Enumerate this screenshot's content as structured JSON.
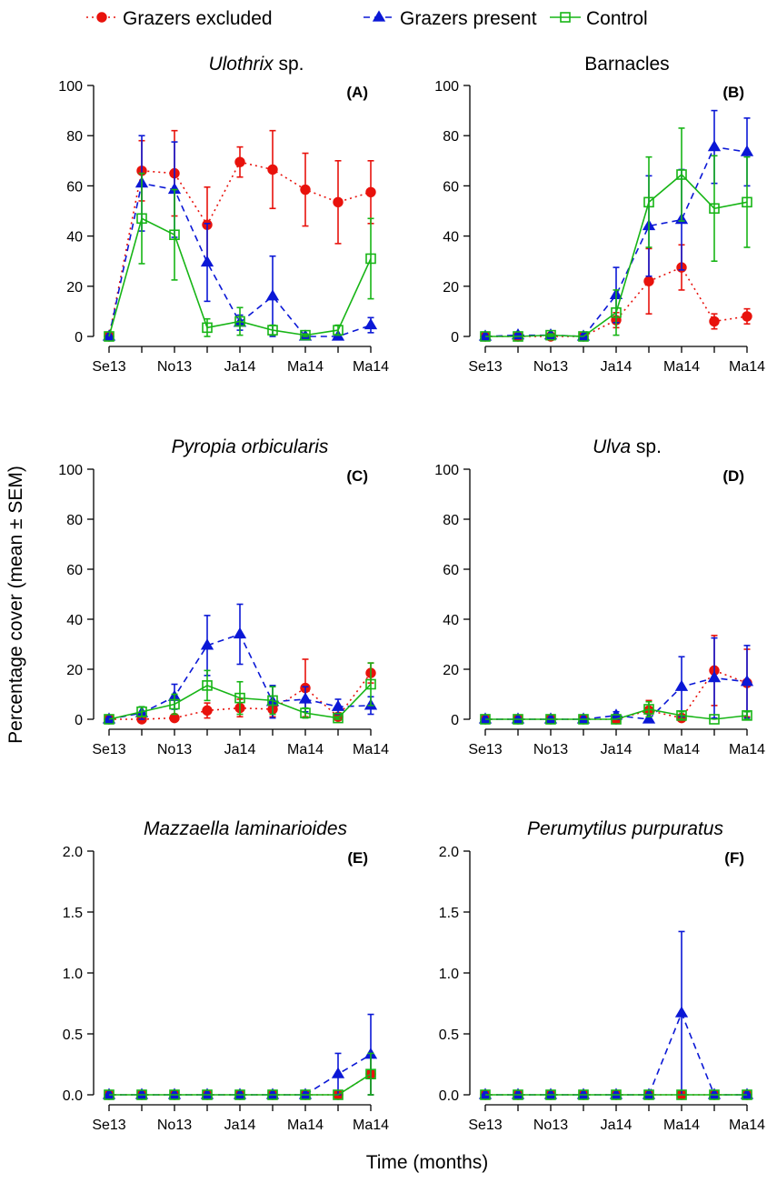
{
  "legend": [
    {
      "label": "Grazers excluded",
      "color": "#e8120c",
      "marker": "circle",
      "dash": "dotted"
    },
    {
      "label": "Grazers present",
      "color": "#0b18d6",
      "marker": "triangle",
      "dash": "dashed"
    },
    {
      "label": "Control",
      "color": "#17b516",
      "marker": "open-square",
      "dash": "solid"
    }
  ],
  "xlabel": "Time (months)",
  "ylabel": "Percentage cover (mean ± SEM)",
  "colors": {
    "excluded": "#e8120c",
    "present": "#0b18d6",
    "control": "#17b516"
  },
  "chart_data": [
    {
      "type": "line",
      "panel": "(A)",
      "title": "sp.",
      "title_italic": "Ulothrix",
      "xticks": [
        "Se13",
        "No13",
        "Ja14",
        "Ma14",
        "Ma14"
      ],
      "xtick_positions": [
        0,
        2,
        4,
        6,
        8
      ],
      "x": [
        0,
        1,
        2,
        3,
        4,
        5,
        6,
        7,
        8
      ],
      "ylim": [
        0,
        100
      ],
      "yticks": [
        "0",
        "20",
        "40",
        "60",
        "80",
        "100"
      ],
      "ytick_values": [
        0,
        20,
        40,
        60,
        80,
        100
      ],
      "series": [
        {
          "name": "Grazers excluded",
          "values": [
            0,
            66,
            65,
            44.5,
            69.5,
            66.5,
            58.5,
            53.5,
            57.5
          ],
          "err": [
            0,
            12,
            17,
            15,
            6,
            15.5,
            14.5,
            16.5,
            12.5
          ]
        },
        {
          "name": "Grazers present",
          "values": [
            0,
            61,
            58.5,
            29.5,
            5.5,
            16,
            0,
            0,
            4.5
          ],
          "err": [
            0,
            19,
            19,
            15.5,
            3,
            16,
            0,
            0,
            3
          ]
        },
        {
          "name": "Control",
          "values": [
            0,
            47,
            40.5,
            3.5,
            6,
            2.5,
            0.5,
            2.5,
            31
          ],
          "err": [
            0,
            18,
            18,
            3.5,
            5.5,
            2,
            0.5,
            2,
            16
          ]
        }
      ]
    },
    {
      "type": "line",
      "panel": "(B)",
      "title": "Barnacles",
      "title_italic": "",
      "xticks": [
        "Se13",
        "No13",
        "Ja14",
        "Ma14",
        "Ma14"
      ],
      "xtick_positions": [
        0,
        2,
        4,
        6,
        8
      ],
      "x": [
        0,
        1,
        2,
        3,
        4,
        5,
        6,
        7,
        8
      ],
      "ylim": [
        0,
        100
      ],
      "yticks": [
        "0",
        "20",
        "40",
        "60",
        "80",
        "100"
      ],
      "ytick_values": [
        0,
        20,
        40,
        60,
        80,
        100
      ],
      "series": [
        {
          "name": "Grazers excluded",
          "values": [
            0,
            0,
            0,
            0,
            6.5,
            22,
            27.5,
            6,
            8
          ],
          "err": [
            0,
            0,
            0,
            0,
            3,
            13,
            9,
            3,
            3
          ]
        },
        {
          "name": "Grazers present",
          "values": [
            0,
            0.5,
            0.5,
            0,
            16.5,
            44,
            46.5,
            75.5,
            73.5
          ],
          "err": [
            0,
            0.5,
            0.5,
            0,
            11,
            20,
            20,
            14.5,
            13.5
          ]
        },
        {
          "name": "Control",
          "values": [
            0,
            0,
            0.5,
            0,
            9.5,
            53.5,
            64.5,
            51,
            53.5
          ],
          "err": [
            0,
            0,
            0.5,
            0,
            9,
            18,
            18.5,
            21,
            18
          ]
        }
      ]
    },
    {
      "type": "line",
      "panel": "(C)",
      "title": "",
      "title_italic": "Pyropia orbicularis",
      "xticks": [
        "Se13",
        "No13",
        "Ja14",
        "Ma14",
        "Ma14"
      ],
      "xtick_positions": [
        0,
        2,
        4,
        6,
        8
      ],
      "x": [
        0,
        1,
        2,
        3,
        4,
        5,
        6,
        7,
        8
      ],
      "ylim": [
        0,
        100
      ],
      "yticks": [
        "0",
        "20",
        "40",
        "60",
        "80",
        "100"
      ],
      "ytick_values": [
        0,
        20,
        40,
        60,
        80,
        100
      ],
      "series": [
        {
          "name": "Grazers excluded",
          "values": [
            0,
            0,
            0.5,
            3.5,
            4.5,
            4,
            12.5,
            1,
            18.5
          ],
          "err": [
            0,
            0,
            0.5,
            3,
            3.5,
            3,
            11.5,
            1,
            4
          ]
        },
        {
          "name": "Grazers present",
          "values": [
            0,
            2.5,
            9,
            29.5,
            34,
            7,
            8,
            5,
            5.5
          ],
          "err": [
            0,
            2.5,
            5,
            12,
            12,
            6.5,
            5,
            3,
            3.5
          ]
        },
        {
          "name": "Control",
          "values": [
            0,
            3,
            6,
            13.5,
            8.5,
            7.5,
            2.5,
            0.5,
            14
          ],
          "err": [
            0,
            2,
            4,
            6,
            6.5,
            5.5,
            2,
            0.5,
            8.5
          ]
        }
      ]
    },
    {
      "type": "line",
      "panel": "(D)",
      "title": "sp.",
      "title_italic": "Ulva",
      "xticks": [
        "Se13",
        "No13",
        "Ja14",
        "Ma14",
        "Ma14"
      ],
      "xtick_positions": [
        0,
        2,
        4,
        6,
        8
      ],
      "x": [
        0,
        1,
        2,
        3,
        4,
        5,
        6,
        7,
        8
      ],
      "ylim": [
        0,
        100
      ],
      "yticks": [
        "0",
        "20",
        "40",
        "60",
        "80",
        "100"
      ],
      "ytick_values": [
        0,
        20,
        40,
        60,
        80,
        100
      ],
      "series": [
        {
          "name": "Grazers excluded",
          "values": [
            0,
            0,
            0,
            0,
            0,
            3.5,
            0.5,
            19.5,
            14.5
          ],
          "err": [
            0,
            0,
            0,
            0,
            0,
            4,
            0.5,
            14,
            13.5
          ]
        },
        {
          "name": "Grazers present",
          "values": [
            0,
            0,
            0,
            0,
            1.5,
            0,
            13,
            16.5,
            15
          ],
          "err": [
            0,
            0,
            0,
            0,
            1.5,
            0,
            12,
            16,
            14.5
          ]
        },
        {
          "name": "Control",
          "values": [
            0,
            0,
            0,
            0,
            0,
            4,
            1.5,
            0,
            1.5
          ],
          "err": [
            0,
            0,
            0,
            0,
            0,
            3,
            1.5,
            0,
            1.5
          ]
        }
      ]
    },
    {
      "type": "line",
      "panel": "(E)",
      "title": "",
      "title_italic": "Mazzaella laminarioides",
      "xticks": [
        "Se13",
        "No13",
        "Ja14",
        "Ma14",
        "Ma14"
      ],
      "xtick_positions": [
        0,
        2,
        4,
        6,
        8
      ],
      "x": [
        0,
        1,
        2,
        3,
        4,
        5,
        6,
        7,
        8
      ],
      "ylim": [
        0,
        2.0
      ],
      "yticks": [
        "0.0",
        "0.5",
        "1.0",
        "1.5",
        "2.0"
      ],
      "ytick_values": [
        0,
        0.5,
        1.0,
        1.5,
        2.0
      ],
      "series": [
        {
          "name": "Grazers excluded",
          "values": [
            0,
            0,
            0,
            0,
            0,
            0,
            0,
            0,
            0.17
          ],
          "err": [
            0,
            0,
            0,
            0,
            0,
            0,
            0,
            0,
            0.17
          ]
        },
        {
          "name": "Grazers present",
          "values": [
            0,
            0,
            0,
            0,
            0,
            0,
            0,
            0.17,
            0.33
          ],
          "err": [
            0,
            0,
            0,
            0,
            0,
            0,
            0,
            0.17,
            0.33
          ]
        },
        {
          "name": "Control",
          "values": [
            0,
            0,
            0,
            0,
            0,
            0,
            0,
            0,
            0.17
          ],
          "err": [
            0,
            0,
            0,
            0,
            0,
            0,
            0,
            0,
            0.17
          ]
        }
      ]
    },
    {
      "type": "line",
      "panel": "(F)",
      "title": "",
      "title_italic": "Perumytilus purpuratus",
      "xticks": [
        "Se13",
        "No13",
        "Ja14",
        "Ma14",
        "Ma14"
      ],
      "xtick_positions": [
        0,
        2,
        4,
        6,
        8
      ],
      "x": [
        0,
        1,
        2,
        3,
        4,
        5,
        6,
        7,
        8
      ],
      "ylim": [
        0,
        2.0
      ],
      "yticks": [
        "0.0",
        "0.5",
        "1.0",
        "1.5",
        "2.0"
      ],
      "ytick_values": [
        0,
        0.5,
        1.0,
        1.5,
        2.0
      ],
      "series": [
        {
          "name": "Grazers excluded",
          "values": [
            0,
            0,
            0,
            0,
            0,
            0,
            0,
            0,
            0
          ],
          "err": [
            0,
            0,
            0,
            0,
            0,
            0,
            0,
            0,
            0
          ]
        },
        {
          "name": "Grazers present",
          "values": [
            0,
            0,
            0,
            0,
            0,
            0,
            0.67,
            0,
            0
          ],
          "err": [
            0,
            0,
            0,
            0,
            0,
            0,
            0.67,
            0,
            0
          ]
        },
        {
          "name": "Control",
          "values": [
            0,
            0,
            0,
            0,
            0,
            0,
            0,
            0,
            0
          ],
          "err": [
            0,
            0,
            0,
            0,
            0,
            0,
            0,
            0,
            0
          ]
        }
      ]
    }
  ]
}
